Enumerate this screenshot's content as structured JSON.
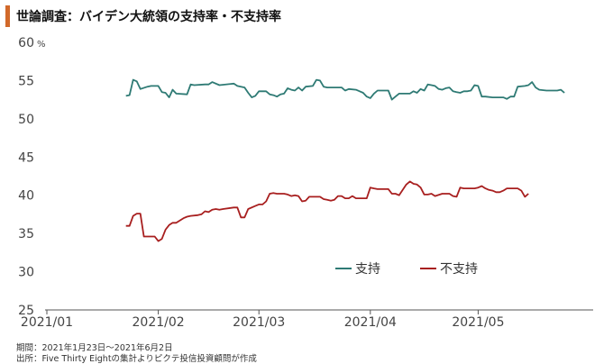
{
  "title": "世論調査：バイデン大統領の支持率・不支持率",
  "footnote_period": "期間：2021年1月23日～2021年6月2日",
  "footnote_source": "出所：Five Thirty Eightの集計よりピクテ投信投資顧問が作成",
  "chart_data": {
    "type": "line",
    "yunit": "%",
    "ylim": [
      25,
      60
    ],
    "yticks": [
      "60",
      "55",
      "50",
      "45",
      "40",
      "35",
      "30",
      "25"
    ],
    "xlim": [
      0,
      152
    ],
    "xticks": [
      {
        "label": "2021/01",
        "x": 0
      },
      {
        "label": "2021/02",
        "x": 31
      },
      {
        "label": "2021/03",
        "x": 59
      },
      {
        "label": "2021/04",
        "x": 90
      },
      {
        "label": "2021/05",
        "x": 120
      }
    ],
    "legend_position": "bottom-center",
    "series": [
      {
        "name": "支持",
        "color": "#2e7a74",
        "points": [
          [
            22,
            53.0
          ],
          [
            23,
            53.1
          ],
          [
            24,
            55.1
          ],
          [
            25,
            54.9
          ],
          [
            26,
            53.9
          ],
          [
            28,
            54.2
          ],
          [
            29,
            54.3
          ],
          [
            31,
            54.3
          ],
          [
            32,
            53.5
          ],
          [
            33,
            53.4
          ],
          [
            34,
            52.8
          ],
          [
            35,
            53.8
          ],
          [
            36,
            53.3
          ],
          [
            39,
            53.2
          ],
          [
            40,
            54.5
          ],
          [
            41,
            54.4
          ],
          [
            44,
            54.5
          ],
          [
            45,
            54.5
          ],
          [
            46,
            54.8
          ],
          [
            48,
            54.4
          ],
          [
            52,
            54.6
          ],
          [
            53,
            54.3
          ],
          [
            55,
            54.1
          ],
          [
            56,
            53.4
          ],
          [
            57,
            52.8
          ],
          [
            58,
            53.0
          ],
          [
            59,
            53.6
          ],
          [
            61,
            53.6
          ],
          [
            62,
            53.2
          ],
          [
            63,
            53.1
          ],
          [
            64,
            52.9
          ],
          [
            65,
            53.2
          ],
          [
            66,
            53.3
          ],
          [
            67,
            54.0
          ],
          [
            68,
            53.8
          ],
          [
            69,
            53.7
          ],
          [
            70,
            54.1
          ],
          [
            71,
            53.7
          ],
          [
            72,
            54.2
          ],
          [
            74,
            54.3
          ],
          [
            75,
            55.1
          ],
          [
            76,
            55.0
          ],
          [
            77,
            54.2
          ],
          [
            78,
            54.1
          ],
          [
            82,
            54.1
          ],
          [
            83,
            53.7
          ],
          [
            84,
            53.9
          ],
          [
            86,
            53.8
          ],
          [
            87,
            53.6
          ],
          [
            88,
            53.4
          ],
          [
            89,
            52.9
          ],
          [
            90,
            52.7
          ],
          [
            91,
            53.3
          ],
          [
            92,
            53.7
          ],
          [
            95,
            53.7
          ],
          [
            96,
            52.5
          ],
          [
            97,
            52.9
          ],
          [
            98,
            53.3
          ],
          [
            101,
            53.3
          ],
          [
            102,
            53.6
          ],
          [
            103,
            53.4
          ],
          [
            104,
            53.9
          ],
          [
            105,
            53.7
          ],
          [
            106,
            54.5
          ],
          [
            107,
            54.4
          ],
          [
            108,
            54.3
          ],
          [
            109,
            53.9
          ],
          [
            110,
            53.8
          ],
          [
            111,
            54.0
          ],
          [
            112,
            54.1
          ],
          [
            113,
            53.6
          ],
          [
            114,
            53.5
          ],
          [
            115,
            53.4
          ],
          [
            116,
            53.6
          ],
          [
            117,
            53.6
          ],
          [
            118,
            53.7
          ],
          [
            119,
            54.4
          ],
          [
            120,
            54.3
          ],
          [
            121,
            52.9
          ],
          [
            122,
            52.9
          ],
          [
            124,
            52.8
          ],
          [
            127,
            52.8
          ],
          [
            128,
            52.6
          ],
          [
            129,
            52.9
          ],
          [
            130,
            52.9
          ],
          [
            131,
            54.2
          ],
          [
            133,
            54.3
          ],
          [
            134,
            54.4
          ],
          [
            135,
            54.8
          ],
          [
            136,
            54.1
          ],
          [
            137,
            53.8
          ],
          [
            139,
            53.7
          ],
          [
            141,
            53.7
          ],
          [
            142,
            53.7
          ],
          [
            143,
            53.8
          ],
          [
            144,
            53.4
          ]
        ]
      },
      {
        "name": "不支持",
        "color": "#a81f1f",
        "points": [
          [
            22,
            36.0
          ],
          [
            23,
            36.0
          ],
          [
            24,
            37.3
          ],
          [
            25,
            37.6
          ],
          [
            26,
            37.6
          ],
          [
            27,
            34.6
          ],
          [
            28,
            34.6
          ],
          [
            30,
            34.6
          ],
          [
            31,
            34.0
          ],
          [
            32,
            34.3
          ],
          [
            33,
            35.5
          ],
          [
            34,
            36.1
          ],
          [
            35,
            36.4
          ],
          [
            36,
            36.4
          ],
          [
            38,
            37.0
          ],
          [
            39,
            37.2
          ],
          [
            40,
            37.3
          ],
          [
            42,
            37.4
          ],
          [
            43,
            37.5
          ],
          [
            44,
            37.9
          ],
          [
            45,
            37.8
          ],
          [
            46,
            38.1
          ],
          [
            47,
            38.2
          ],
          [
            48,
            38.1
          ],
          [
            49,
            38.2
          ],
          [
            52,
            38.4
          ],
          [
            53,
            38.4
          ],
          [
            54,
            37.1
          ],
          [
            55,
            37.1
          ],
          [
            56,
            38.2
          ],
          [
            58,
            38.6
          ],
          [
            59,
            38.8
          ],
          [
            60,
            38.8
          ],
          [
            61,
            39.2
          ],
          [
            62,
            40.2
          ],
          [
            63,
            40.3
          ],
          [
            64,
            40.2
          ],
          [
            66,
            40.2
          ],
          [
            67,
            40.1
          ],
          [
            68,
            39.9
          ],
          [
            69,
            40.0
          ],
          [
            70,
            39.9
          ],
          [
            71,
            39.2
          ],
          [
            72,
            39.3
          ],
          [
            73,
            39.8
          ],
          [
            76,
            39.8
          ],
          [
            77,
            39.5
          ],
          [
            78,
            39.4
          ],
          [
            79,
            39.3
          ],
          [
            80,
            39.4
          ],
          [
            81,
            39.9
          ],
          [
            82,
            39.9
          ],
          [
            83,
            39.6
          ],
          [
            84,
            39.6
          ],
          [
            85,
            39.9
          ],
          [
            86,
            39.6
          ],
          [
            88,
            39.6
          ],
          [
            89,
            39.6
          ],
          [
            90,
            41.0
          ],
          [
            91,
            40.9
          ],
          [
            92,
            40.8
          ],
          [
            95,
            40.8
          ],
          [
            96,
            40.2
          ],
          [
            97,
            40.2
          ],
          [
            98,
            40.0
          ],
          [
            99,
            40.7
          ],
          [
            100,
            41.4
          ],
          [
            101,
            41.8
          ],
          [
            102,
            41.5
          ],
          [
            103,
            41.4
          ],
          [
            104,
            41.0
          ],
          [
            105,
            40.1
          ],
          [
            106,
            40.1
          ],
          [
            107,
            40.2
          ],
          [
            108,
            39.9
          ],
          [
            110,
            40.2
          ],
          [
            112,
            40.2
          ],
          [
            113,
            39.9
          ],
          [
            114,
            39.8
          ],
          [
            115,
            41.0
          ],
          [
            116,
            40.9
          ],
          [
            118,
            40.9
          ],
          [
            119,
            40.9
          ],
          [
            120,
            41.0
          ],
          [
            121,
            41.2
          ],
          [
            122,
            40.9
          ],
          [
            123,
            40.7
          ],
          [
            124,
            40.6
          ],
          [
            125,
            40.4
          ],
          [
            126,
            40.4
          ],
          [
            127,
            40.6
          ],
          [
            128,
            40.9
          ],
          [
            131,
            40.9
          ],
          [
            132,
            40.6
          ],
          [
            133,
            39.8
          ],
          [
            134,
            40.2
          ]
        ]
      }
    ]
  }
}
